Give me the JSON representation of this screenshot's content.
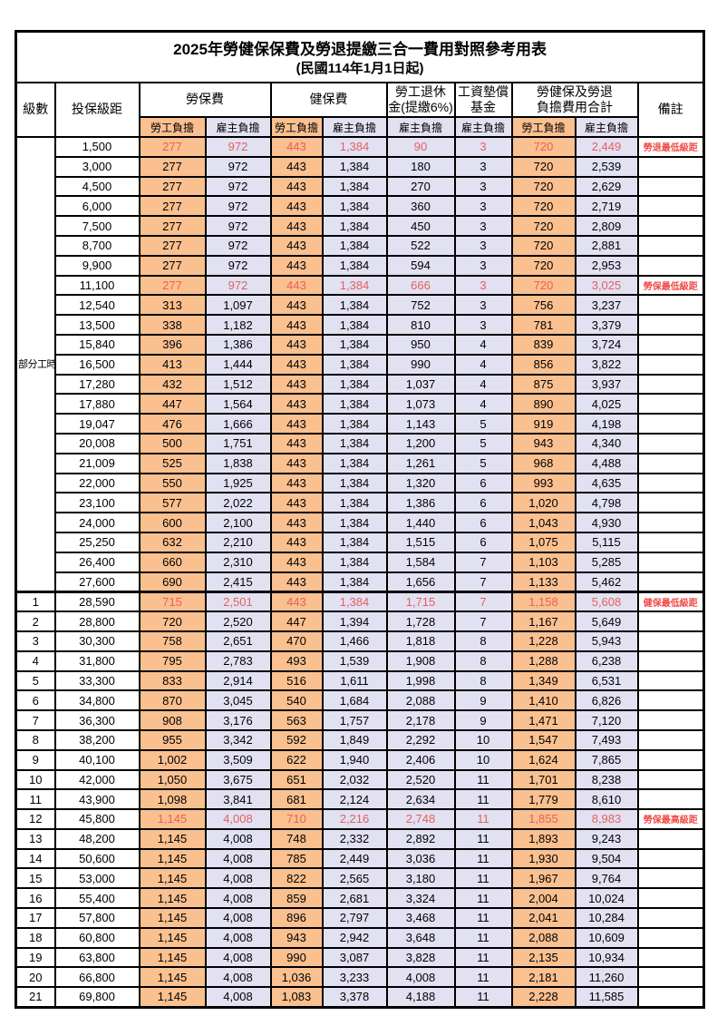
{
  "title": "2025年勞健保保費及勞退提繳三合一費用對照參考用表",
  "subtitle": "(民國114年1月1日起)",
  "header": {
    "level": "級數",
    "bracket": "投保級距",
    "labor_ins": "勞保費",
    "health_ins": "健保費",
    "pension_line1": "勞工退休",
    "pension_line2": "金(提繳6%)",
    "wage_fund_line1": "工資墊償",
    "wage_fund_line2": "基金",
    "total_line1": "勞健保及勞退",
    "total_line2": "負擔費用合計",
    "note": "備註",
    "employee": "勞工負擔",
    "employer": "雇主負擔"
  },
  "part_time_label": "部分工時",
  "colors": {
    "employee_bg": "#FAC090",
    "employer_bg": "#E1E1F2",
    "highlight_text": "#E85F5A",
    "note_text": "#F04B45",
    "border": "#000000"
  },
  "rows": [
    {
      "level": "",
      "bracket": "1,500",
      "values": [
        "277",
        "972",
        "443",
        "1,384",
        "90",
        "3",
        "720",
        "2,449"
      ],
      "note": "勞退最低級距",
      "highlight": true
    },
    {
      "level": "",
      "bracket": "3,000",
      "values": [
        "277",
        "972",
        "443",
        "1,384",
        "180",
        "3",
        "720",
        "2,539"
      ],
      "note": "",
      "highlight": false
    },
    {
      "level": "",
      "bracket": "4,500",
      "values": [
        "277",
        "972",
        "443",
        "1,384",
        "270",
        "3",
        "720",
        "2,629"
      ],
      "note": "",
      "highlight": false
    },
    {
      "level": "",
      "bracket": "6,000",
      "values": [
        "277",
        "972",
        "443",
        "1,384",
        "360",
        "3",
        "720",
        "2,719"
      ],
      "note": "",
      "highlight": false
    },
    {
      "level": "",
      "bracket": "7,500",
      "values": [
        "277",
        "972",
        "443",
        "1,384",
        "450",
        "3",
        "720",
        "2,809"
      ],
      "note": "",
      "highlight": false
    },
    {
      "level": "",
      "bracket": "8,700",
      "values": [
        "277",
        "972",
        "443",
        "1,384",
        "522",
        "3",
        "720",
        "2,881"
      ],
      "note": "",
      "highlight": false
    },
    {
      "level": "",
      "bracket": "9,900",
      "values": [
        "277",
        "972",
        "443",
        "1,384",
        "594",
        "3",
        "720",
        "2,953"
      ],
      "note": "",
      "highlight": false
    },
    {
      "level": "",
      "bracket": "11,100",
      "values": [
        "277",
        "972",
        "443",
        "1,384",
        "666",
        "3",
        "720",
        "3,025"
      ],
      "note": "勞保最低級距",
      "highlight": true
    },
    {
      "level": "",
      "bracket": "12,540",
      "values": [
        "313",
        "1,097",
        "443",
        "1,384",
        "752",
        "3",
        "756",
        "3,237"
      ],
      "note": "",
      "highlight": false
    },
    {
      "level": "",
      "bracket": "13,500",
      "values": [
        "338",
        "1,182",
        "443",
        "1,384",
        "810",
        "3",
        "781",
        "3,379"
      ],
      "note": "",
      "highlight": false
    },
    {
      "level": "",
      "bracket": "15,840",
      "values": [
        "396",
        "1,386",
        "443",
        "1,384",
        "950",
        "4",
        "839",
        "3,724"
      ],
      "note": "",
      "highlight": false
    },
    {
      "level": "",
      "bracket": "16,500",
      "values": [
        "413",
        "1,444",
        "443",
        "1,384",
        "990",
        "4",
        "856",
        "3,822"
      ],
      "note": "",
      "highlight": false
    },
    {
      "level": "",
      "bracket": "17,280",
      "values": [
        "432",
        "1,512",
        "443",
        "1,384",
        "1,037",
        "4",
        "875",
        "3,937"
      ],
      "note": "",
      "highlight": false
    },
    {
      "level": "",
      "bracket": "17,880",
      "values": [
        "447",
        "1,564",
        "443",
        "1,384",
        "1,073",
        "4",
        "890",
        "4,025"
      ],
      "note": "",
      "highlight": false
    },
    {
      "level": "",
      "bracket": "19,047",
      "values": [
        "476",
        "1,666",
        "443",
        "1,384",
        "1,143",
        "5",
        "919",
        "4,198"
      ],
      "note": "",
      "highlight": false
    },
    {
      "level": "",
      "bracket": "20,008",
      "values": [
        "500",
        "1,751",
        "443",
        "1,384",
        "1,200",
        "5",
        "943",
        "4,340"
      ],
      "note": "",
      "highlight": false
    },
    {
      "level": "",
      "bracket": "21,009",
      "values": [
        "525",
        "1,838",
        "443",
        "1,384",
        "1,261",
        "5",
        "968",
        "4,488"
      ],
      "note": "",
      "highlight": false
    },
    {
      "level": "",
      "bracket": "22,000",
      "values": [
        "550",
        "1,925",
        "443",
        "1,384",
        "1,320",
        "6",
        "993",
        "4,635"
      ],
      "note": "",
      "highlight": false
    },
    {
      "level": "",
      "bracket": "23,100",
      "values": [
        "577",
        "2,022",
        "443",
        "1,384",
        "1,386",
        "6",
        "1,020",
        "4,798"
      ],
      "note": "",
      "highlight": false
    },
    {
      "level": "",
      "bracket": "24,000",
      "values": [
        "600",
        "2,100",
        "443",
        "1,384",
        "1,440",
        "6",
        "1,043",
        "4,930"
      ],
      "note": "",
      "highlight": false
    },
    {
      "level": "",
      "bracket": "25,250",
      "values": [
        "632",
        "2,210",
        "443",
        "1,384",
        "1,515",
        "6",
        "1,075",
        "5,115"
      ],
      "note": "",
      "highlight": false
    },
    {
      "level": "",
      "bracket": "26,400",
      "values": [
        "660",
        "2,310",
        "443",
        "1,384",
        "1,584",
        "7",
        "1,103",
        "5,285"
      ],
      "note": "",
      "highlight": false
    },
    {
      "level": "",
      "bracket": "27,600",
      "values": [
        "690",
        "2,415",
        "443",
        "1,384",
        "1,656",
        "7",
        "1,133",
        "5,462"
      ],
      "note": "",
      "highlight": false
    },
    {
      "level": "1",
      "bracket": "28,590",
      "values": [
        "715",
        "2,501",
        "443",
        "1,384",
        "1,715",
        "7",
        "1,158",
        "5,608"
      ],
      "note": "健保最低級距",
      "highlight": true
    },
    {
      "level": "2",
      "bracket": "28,800",
      "values": [
        "720",
        "2,520",
        "447",
        "1,394",
        "1,728",
        "7",
        "1,167",
        "5,649"
      ],
      "note": "",
      "highlight": false
    },
    {
      "level": "3",
      "bracket": "30,300",
      "values": [
        "758",
        "2,651",
        "470",
        "1,466",
        "1,818",
        "8",
        "1,228",
        "5,943"
      ],
      "note": "",
      "highlight": false
    },
    {
      "level": "4",
      "bracket": "31,800",
      "values": [
        "795",
        "2,783",
        "493",
        "1,539",
        "1,908",
        "8",
        "1,288",
        "6,238"
      ],
      "note": "",
      "highlight": false
    },
    {
      "level": "5",
      "bracket": "33,300",
      "values": [
        "833",
        "2,914",
        "516",
        "1,611",
        "1,998",
        "8",
        "1,349",
        "6,531"
      ],
      "note": "",
      "highlight": false
    },
    {
      "level": "6",
      "bracket": "34,800",
      "values": [
        "870",
        "3,045",
        "540",
        "1,684",
        "2,088",
        "9",
        "1,410",
        "6,826"
      ],
      "note": "",
      "highlight": false
    },
    {
      "level": "7",
      "bracket": "36,300",
      "values": [
        "908",
        "3,176",
        "563",
        "1,757",
        "2,178",
        "9",
        "1,471",
        "7,120"
      ],
      "note": "",
      "highlight": false
    },
    {
      "level": "8",
      "bracket": "38,200",
      "values": [
        "955",
        "3,342",
        "592",
        "1,849",
        "2,292",
        "10",
        "1,547",
        "7,493"
      ],
      "note": "",
      "highlight": false
    },
    {
      "level": "9",
      "bracket": "40,100",
      "values": [
        "1,002",
        "3,509",
        "622",
        "1,940",
        "2,406",
        "10",
        "1,624",
        "7,865"
      ],
      "note": "",
      "highlight": false
    },
    {
      "level": "10",
      "bracket": "42,000",
      "values": [
        "1,050",
        "3,675",
        "651",
        "2,032",
        "2,520",
        "11",
        "1,701",
        "8,238"
      ],
      "note": "",
      "highlight": false
    },
    {
      "level": "11",
      "bracket": "43,900",
      "values": [
        "1,098",
        "3,841",
        "681",
        "2,124",
        "2,634",
        "11",
        "1,779",
        "8,610"
      ],
      "note": "",
      "highlight": false
    },
    {
      "level": "12",
      "bracket": "45,800",
      "values": [
        "1,145",
        "4,008",
        "710",
        "2,216",
        "2,748",
        "11",
        "1,855",
        "8,983"
      ],
      "note": "勞保最高級距",
      "highlight": true
    },
    {
      "level": "13",
      "bracket": "48,200",
      "values": [
        "1,145",
        "4,008",
        "748",
        "2,332",
        "2,892",
        "11",
        "1,893",
        "9,243"
      ],
      "note": "",
      "highlight": false
    },
    {
      "level": "14",
      "bracket": "50,600",
      "values": [
        "1,145",
        "4,008",
        "785",
        "2,449",
        "3,036",
        "11",
        "1,930",
        "9,504"
      ],
      "note": "",
      "highlight": false
    },
    {
      "level": "15",
      "bracket": "53,000",
      "values": [
        "1,145",
        "4,008",
        "822",
        "2,565",
        "3,180",
        "11",
        "1,967",
        "9,764"
      ],
      "note": "",
      "highlight": false
    },
    {
      "level": "16",
      "bracket": "55,400",
      "values": [
        "1,145",
        "4,008",
        "859",
        "2,681",
        "3,324",
        "11",
        "2,004",
        "10,024"
      ],
      "note": "",
      "highlight": false
    },
    {
      "level": "17",
      "bracket": "57,800",
      "values": [
        "1,145",
        "4,008",
        "896",
        "2,797",
        "3,468",
        "11",
        "2,041",
        "10,284"
      ],
      "note": "",
      "highlight": false
    },
    {
      "level": "18",
      "bracket": "60,800",
      "values": [
        "1,145",
        "4,008",
        "943",
        "2,942",
        "3,648",
        "11",
        "2,088",
        "10,609"
      ],
      "note": "",
      "highlight": false
    },
    {
      "level": "19",
      "bracket": "63,800",
      "values": [
        "1,145",
        "4,008",
        "990",
        "3,087",
        "3,828",
        "11",
        "2,135",
        "10,934"
      ],
      "note": "",
      "highlight": false
    },
    {
      "level": "20",
      "bracket": "66,800",
      "values": [
        "1,145",
        "4,008",
        "1,036",
        "3,233",
        "4,008",
        "11",
        "2,181",
        "11,260"
      ],
      "note": "",
      "highlight": false
    },
    {
      "level": "21",
      "bracket": "69,800",
      "values": [
        "1,145",
        "4,008",
        "1,083",
        "3,378",
        "4,188",
        "11",
        "2,228",
        "11,585"
      ],
      "note": "",
      "highlight": false
    }
  ]
}
